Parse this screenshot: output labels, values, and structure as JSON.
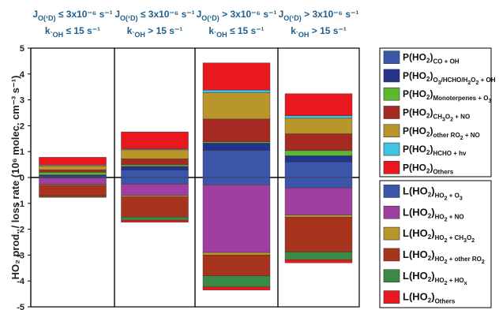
{
  "chart_data": {
    "type": "bar",
    "stacked": true,
    "ylabel_html": "HO₂ prod. / loss rate (10⁶ molec. cm⁻³ s⁻¹)",
    "ylim": [
      -5,
      5
    ],
    "yticks": [
      5,
      4,
      3,
      2,
      1,
      0,
      -1,
      -2,
      -3,
      -4,
      -5
    ],
    "grid": false,
    "legend_placement": "right",
    "categories": [
      {
        "line1": "J_O(¹D) ≤ 3x10⁻⁶ s⁻¹",
        "line2": "k`OH ≤ 15 s⁻¹"
      },
      {
        "line1": "J_O(¹D) ≤ 3x10⁻⁶ s⁻¹",
        "line2": "k`OH > 15 s⁻¹"
      },
      {
        "line1": "J_O(¹D) > 3x10⁻⁶ s⁻¹",
        "line2": "k`OH ≤ 15 s⁻¹"
      },
      {
        "line1": "J_O(¹D) > 3x10⁻⁶ s⁻¹",
        "line2": "k`OH > 15 s⁻¹"
      }
    ],
    "production_series": [
      {
        "name": "P(HO2)CO + OH",
        "color": "#3b55a8",
        "values": [
          0.05,
          0.28,
          1.05,
          0.6
        ]
      },
      {
        "name": "P(HO2)O3/HCHO/H2O2 + OH",
        "color": "#24338a",
        "values": [
          0.05,
          0.15,
          0.28,
          0.24
        ]
      },
      {
        "name": "P(HO2)Monoterpenes + O3",
        "color": "#5cb832",
        "values": [
          0.1,
          0.06,
          0.05,
          0.2
        ]
      },
      {
        "name": "P(HO2)CH3O2 + NO",
        "color": "#a52a22",
        "values": [
          0.1,
          0.23,
          0.88,
          0.65
        ]
      },
      {
        "name": "P(HO2)other RO2 + NO",
        "color": "#b8962a",
        "values": [
          0.15,
          0.35,
          1.02,
          0.6
        ]
      },
      {
        "name": "P(HO2)HCHO + hv",
        "color": "#3fc4e6",
        "values": [
          0.03,
          0.03,
          0.1,
          0.1
        ]
      },
      {
        "name": "P(HO2)Others",
        "color": "#e8181e",
        "values": [
          0.3,
          0.66,
          1.05,
          0.85
        ]
      }
    ],
    "loss_series": [
      {
        "name": "L(HO2)HO2 + O3",
        "color": "#3b55a8",
        "values": [
          -0.02,
          -0.25,
          -0.28,
          -0.4
        ]
      },
      {
        "name": "L(HO2)HO2 + NO",
        "color": "#a03fa0",
        "values": [
          -0.25,
          -0.45,
          -2.62,
          -1.05
        ]
      },
      {
        "name": "L(HO2)HO2 + CH3O2",
        "color": "#b8962a",
        "values": [
          -0.03,
          -0.05,
          -0.1,
          -0.08
        ]
      },
      {
        "name": "L(HO2)HO2 + other RO2",
        "color": "#a8341e",
        "values": [
          -0.4,
          -0.78,
          -0.8,
          -1.35
        ]
      },
      {
        "name": "L(HO2)HO2 + HOx",
        "color": "#3a8a46",
        "values": [
          -0.03,
          -0.12,
          -0.43,
          -0.3
        ]
      },
      {
        "name": "L(HO2)Others",
        "color": "#e8181e",
        "values": [
          -0.04,
          -0.08,
          -0.12,
          -0.12
        ]
      }
    ]
  },
  "legend_production": [
    {
      "base": "P(HO",
      "sub1": "2",
      "mid": ")",
      "tail": [
        [
          "sub",
          "CO + OH"
        ]
      ],
      "color": "#3b55a8"
    },
    {
      "base": "P(HO",
      "sub1": "2",
      "mid": ")",
      "tail": [
        [
          "sub",
          "O"
        ],
        [
          "sub2",
          "3"
        ],
        [
          "sub",
          "/HCHO/H"
        ],
        [
          "sub2",
          "2"
        ],
        [
          "sub",
          "O"
        ],
        [
          "sub2",
          "2"
        ],
        [
          "sub",
          " + OH"
        ]
      ],
      "color": "#24338a"
    },
    {
      "base": "P(HO",
      "sub1": "2",
      "mid": ")",
      "tail": [
        [
          "sub",
          "Monoterpenes + O"
        ],
        [
          "sub2",
          "3"
        ]
      ],
      "color": "#5cb832"
    },
    {
      "base": "P(HO",
      "sub1": "2",
      "mid": ")",
      "tail": [
        [
          "sub",
          "CH"
        ],
        [
          "sub2",
          "3"
        ],
        [
          "sub",
          "O"
        ],
        [
          "sub2",
          "2"
        ],
        [
          "sub",
          " + NO"
        ]
      ],
      "color": "#a52a22"
    },
    {
      "base": "P(HO",
      "sub1": "2",
      "mid": ")",
      "tail": [
        [
          "sub",
          "other RO"
        ],
        [
          "sub2",
          "2"
        ],
        [
          "sub",
          " + NO"
        ]
      ],
      "color": "#b8962a"
    },
    {
      "base": "P(HO",
      "sub1": "2",
      "mid": ")",
      "tail": [
        [
          "sub",
          "HCHO + hv"
        ]
      ],
      "color": "#3fc4e6"
    },
    {
      "base": "P(HO",
      "sub1": "2",
      "mid": ")",
      "tail": [
        [
          "sub",
          "Others"
        ]
      ],
      "color": "#e8181e"
    }
  ],
  "legend_loss": [
    {
      "base": "L(HO",
      "sub1": "2",
      "mid": ")",
      "tail": [
        [
          "sub",
          "HO"
        ],
        [
          "sub2",
          "2"
        ],
        [
          "sub",
          " + O"
        ],
        [
          "sub2",
          "3"
        ]
      ],
      "color": "#3b55a8"
    },
    {
      "base": "L(HO",
      "sub1": "2",
      "mid": ")",
      "tail": [
        [
          "sub",
          "HO"
        ],
        [
          "sub2",
          "2"
        ],
        [
          "sub",
          " + NO"
        ]
      ],
      "color": "#a03fa0"
    },
    {
      "base": "L(HO",
      "sub1": "2",
      "mid": ")",
      "tail": [
        [
          "sub",
          "HO"
        ],
        [
          "sub2",
          "2"
        ],
        [
          "sub",
          " + CH"
        ],
        [
          "sub2",
          "3"
        ],
        [
          "sub",
          "O"
        ],
        [
          "sub2",
          "2"
        ]
      ],
      "color": "#b8962a"
    },
    {
      "base": "L(HO",
      "sub1": "2",
      "mid": ")",
      "tail": [
        [
          "sub",
          "HO"
        ],
        [
          "sub2",
          "2"
        ],
        [
          "sub",
          " + other RO"
        ],
        [
          "sub2",
          "2"
        ]
      ],
      "color": "#a8341e"
    },
    {
      "base": "L(HO",
      "sub1": "2",
      "mid": ")",
      "tail": [
        [
          "sub",
          "HO"
        ],
        [
          "sub2",
          "2"
        ],
        [
          "sub",
          " + HO"
        ],
        [
          "sub2",
          "x"
        ]
      ],
      "color": "#3a8a46"
    },
    {
      "base": "L(HO",
      "sub1": "2",
      "mid": ")",
      "tail": [
        [
          "sub",
          "Others"
        ]
      ],
      "color": "#e8181e"
    }
  ]
}
